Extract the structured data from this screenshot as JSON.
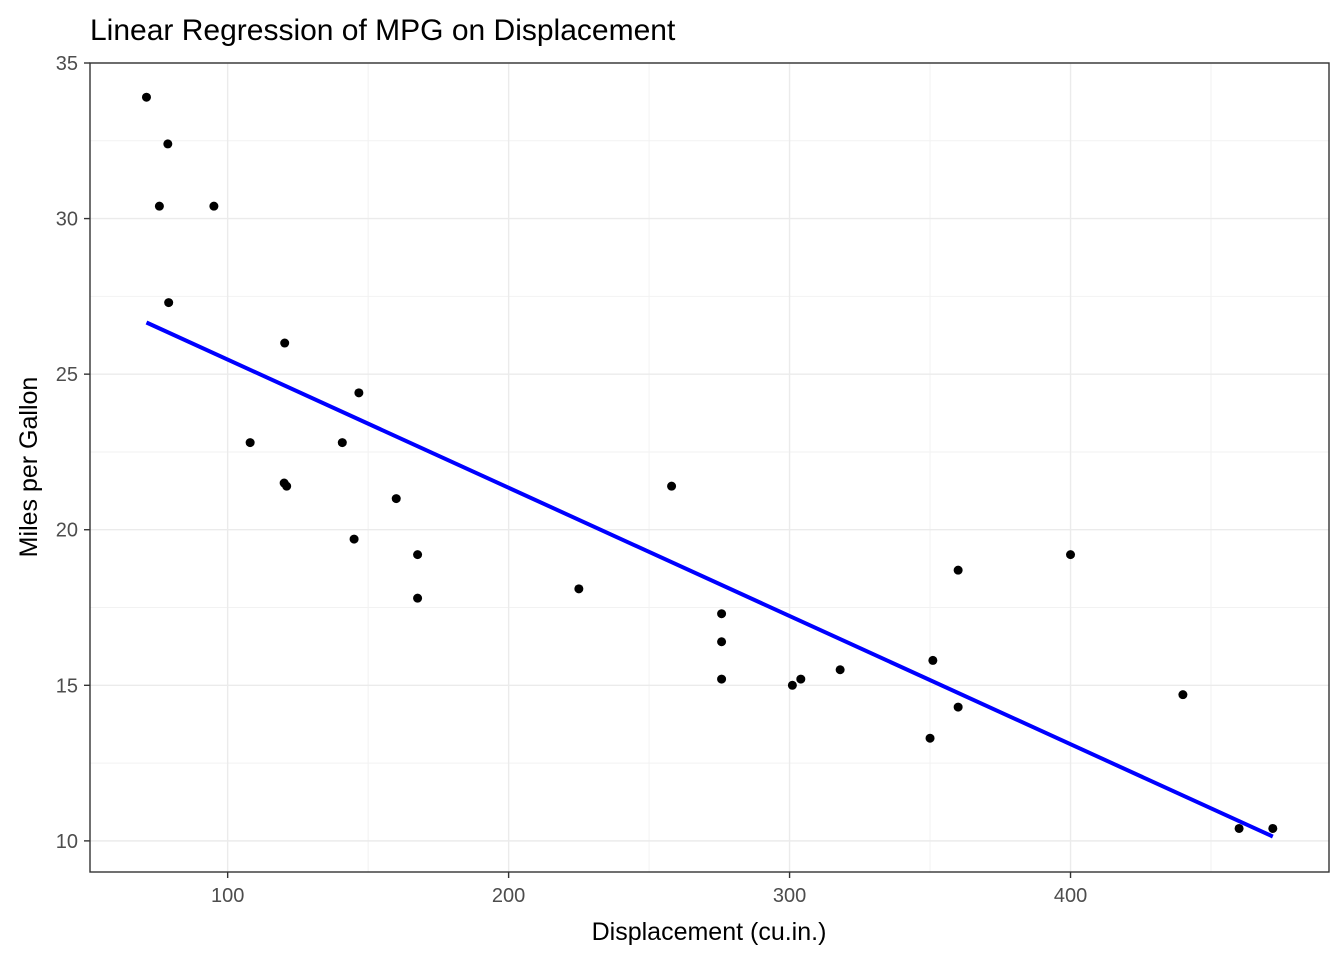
{
  "chart_data": {
    "type": "scatter",
    "title": "Linear Regression of MPG on Displacement",
    "xlabel": "Displacement (cu.in.)",
    "ylabel": "Miles per Gallon",
    "xlim": [
      51.0,
      492.0
    ],
    "ylim": [
      9.0,
      35.0
    ],
    "x_ticks": [
      100,
      200,
      300,
      400
    ],
    "x_minor_ticks": [
      150,
      250,
      350,
      450
    ],
    "y_ticks": [
      10,
      15,
      20,
      25,
      30,
      35
    ],
    "y_minor_ticks": [
      12.5,
      17.5,
      22.5,
      27.5,
      32.5
    ],
    "grid": true,
    "points": [
      {
        "x": 71.1,
        "y": 33.9
      },
      {
        "x": 78.7,
        "y": 32.4
      },
      {
        "x": 75.7,
        "y": 30.4
      },
      {
        "x": 95.1,
        "y": 30.4
      },
      {
        "x": 79.0,
        "y": 27.3
      },
      {
        "x": 120.3,
        "y": 26.0
      },
      {
        "x": 146.7,
        "y": 24.4
      },
      {
        "x": 108.0,
        "y": 22.8
      },
      {
        "x": 140.8,
        "y": 22.8
      },
      {
        "x": 121.0,
        "y": 21.4
      },
      {
        "x": 120.1,
        "y": 21.5
      },
      {
        "x": 258.0,
        "y": 21.4
      },
      {
        "x": 160.0,
        "y": 21.0
      },
      {
        "x": 145.0,
        "y": 19.7
      },
      {
        "x": 167.6,
        "y": 19.2
      },
      {
        "x": 400.0,
        "y": 19.2
      },
      {
        "x": 360.0,
        "y": 18.7
      },
      {
        "x": 225.0,
        "y": 18.1
      },
      {
        "x": 167.6,
        "y": 17.8
      },
      {
        "x": 275.8,
        "y": 17.3
      },
      {
        "x": 275.8,
        "y": 16.4
      },
      {
        "x": 351.0,
        "y": 15.8
      },
      {
        "x": 318.0,
        "y": 15.5
      },
      {
        "x": 275.8,
        "y": 15.2
      },
      {
        "x": 304.0,
        "y": 15.2
      },
      {
        "x": 301.0,
        "y": 15.0
      },
      {
        "x": 440.0,
        "y": 14.7
      },
      {
        "x": 360.0,
        "y": 14.3
      },
      {
        "x": 350.0,
        "y": 13.3
      },
      {
        "x": 460.0,
        "y": 10.4
      },
      {
        "x": 472.0,
        "y": 10.4
      }
    ],
    "regression_line": {
      "color": "#0000ff",
      "points": [
        {
          "x": 71.1,
          "y": 26.66
        },
        {
          "x": 472.0,
          "y": 10.14
        }
      ]
    },
    "point_color": "#000000"
  }
}
